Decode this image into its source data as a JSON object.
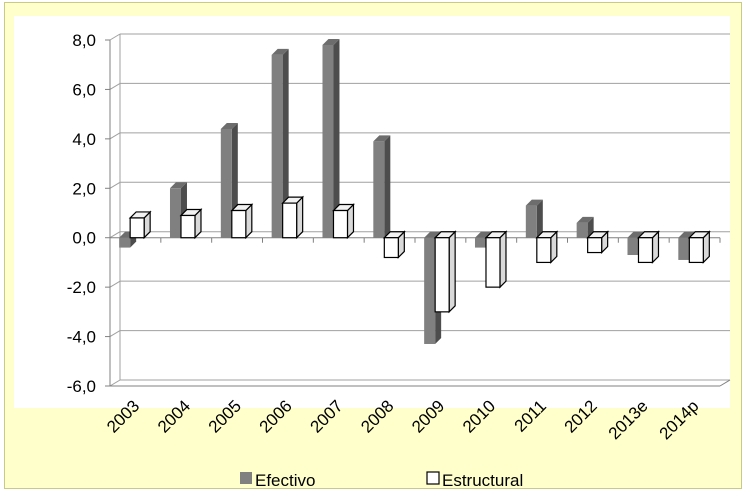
{
  "chart_data": {
    "type": "bar",
    "categories": [
      "2003",
      "2004",
      "2005",
      "2006",
      "2007",
      "2008",
      "2009",
      "2010",
      "2011",
      "2012",
      "2013e",
      "2014p"
    ],
    "series": [
      {
        "name": "Efectivo",
        "values": [
          -0.4,
          2.0,
          4.4,
          7.4,
          7.8,
          3.9,
          -4.3,
          -0.4,
          1.3,
          0.6,
          -0.7,
          -0.9
        ]
      },
      {
        "name": "Estructural",
        "values": [
          0.8,
          0.9,
          1.1,
          1.4,
          1.1,
          -0.8,
          -3.0,
          -2.0,
          -1.0,
          -0.6,
          -1.0,
          -1.0
        ]
      }
    ],
    "yticks": [
      "8,0",
      "6,0",
      "4,0",
      "2,0",
      "0,0",
      "-2,0",
      "-4,0",
      "-6,0"
    ],
    "ylim": [
      -6,
      8
    ],
    "grid": true,
    "legend_position": "bottom",
    "colors": {
      "Efectivo": "#808080",
      "Estructural": "#ffffff",
      "background": "#ffffcc",
      "plot_area": "#ffffff",
      "grid": "#a0a0a0"
    }
  }
}
